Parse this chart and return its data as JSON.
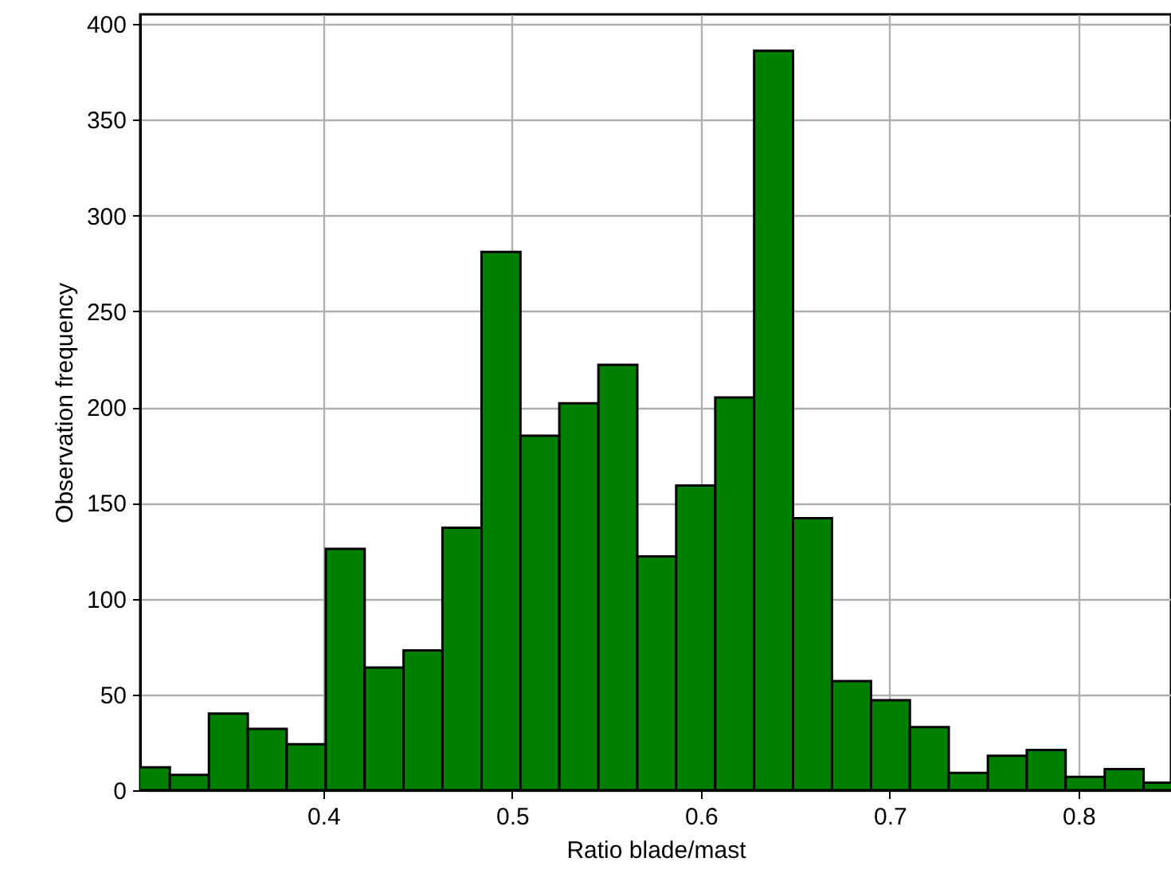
{
  "chart_data": {
    "type": "histogram",
    "xlabel": "Ratio blade/mast",
    "ylabel": "Observation frequency",
    "bins": [
      0.2981,
      0.3187,
      0.3394,
      0.36,
      0.3806,
      0.4013,
      0.4219,
      0.4425,
      0.4631,
      0.4838,
      0.5044,
      0.525,
      0.5457,
      0.5663,
      0.5869,
      0.6076,
      0.6282,
      0.6488,
      0.6694,
      0.6901,
      0.7107,
      0.7313,
      0.752,
      0.7726,
      0.7932,
      0.8139,
      0.8345,
      0.8551
    ],
    "values": [
      12,
      8,
      40,
      32,
      24,
      126,
      64,
      73,
      137,
      281,
      185,
      202,
      222,
      122,
      159,
      205,
      386,
      142,
      57,
      47,
      33,
      9,
      18,
      21,
      7,
      11,
      4
    ],
    "color": "#008000",
    "xlim": [
      0.303,
      0.849
    ],
    "xticks": [
      0.4,
      0.5,
      0.6,
      0.7,
      0.8
    ],
    "ylim": [
      0,
      405
    ],
    "yticks": [
      0,
      50,
      100,
      150,
      200,
      250,
      300,
      350,
      400
    ],
    "grid": true
  }
}
